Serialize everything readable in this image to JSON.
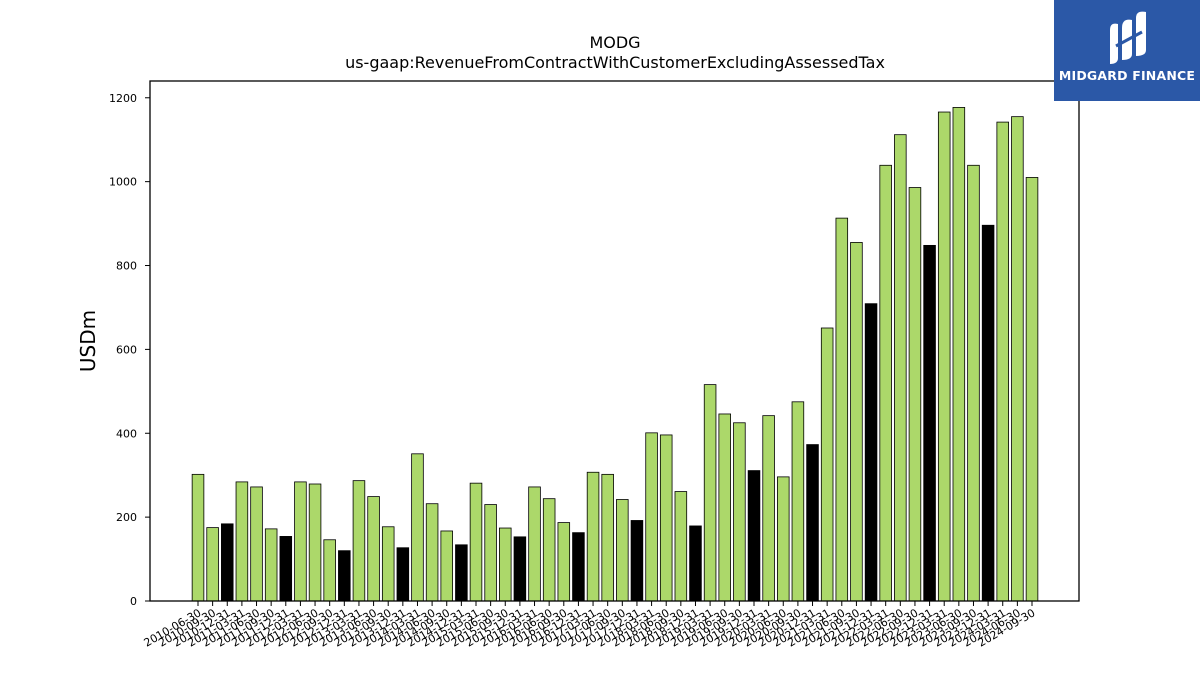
{
  "logo": {
    "text": "MIDGARD FINANCE",
    "color": "#2b58a7"
  },
  "chart_data": {
    "type": "bar",
    "title": "MODG",
    "subtitle": "us-gaap:RevenueFromContractWithCustomerExcludingAssessedTax",
    "xlabel": "",
    "ylabel": "USDm",
    "ylim": [
      0,
      1240
    ],
    "yticks": [
      0,
      200,
      400,
      600,
      800,
      1000,
      1200
    ],
    "grid": false,
    "colors": {
      "quarter": "#acd86a",
      "year_end": "#000000"
    },
    "categories": [
      "2010-06-30",
      "2010-09-30",
      "2010-12-31",
      "2011-03-31",
      "2011-06-30",
      "2011-09-30",
      "2011-12-31",
      "2012-03-31",
      "2012-06-30",
      "2012-09-30",
      "2012-12-31",
      "2013-03-31",
      "2013-06-30",
      "2013-09-30",
      "2013-12-31",
      "2014-03-31",
      "2014-06-30",
      "2014-09-30",
      "2014-12-31",
      "2015-03-31",
      "2015-06-30",
      "2015-09-30",
      "2015-12-31",
      "2016-03-31",
      "2016-06-30",
      "2016-09-30",
      "2016-12-31",
      "2017-03-31",
      "2017-06-30",
      "2017-09-30",
      "2017-12-31",
      "2018-03-31",
      "2018-06-30",
      "2018-09-30",
      "2018-12-31",
      "2019-03-31",
      "2019-06-30",
      "2019-09-30",
      "2019-12-31",
      "2020-03-31",
      "2020-06-30",
      "2020-09-30",
      "2020-12-31",
      "2021-03-31",
      "2021-06-30",
      "2021-09-30",
      "2021-12-31",
      "2022-03-31",
      "2022-06-30",
      "2022-09-30",
      "2022-12-31",
      "2023-03-31",
      "2023-06-30",
      "2023-09-30",
      "2023-12-31",
      "2024-03-31",
      "2024-06-30",
      "2024-09-30"
    ],
    "values": [
      302,
      175,
      184,
      284,
      272,
      172,
      154,
      284,
      279,
      146,
      120,
      287,
      249,
      177,
      127,
      351,
      232,
      167,
      134,
      281,
      230,
      174,
      153,
      272,
      244,
      187,
      163,
      307,
      302,
      242,
      192,
      401,
      396,
      261,
      179,
      516,
      446,
      425,
      311,
      442,
      296,
      475,
      373,
      651,
      913,
      855,
      709,
      1039,
      1112,
      986,
      848,
      1166,
      1177,
      1039,
      896,
      1142,
      1155,
      1010
    ],
    "year_end_flags": [
      0,
      0,
      1,
      0,
      0,
      0,
      1,
      0,
      0,
      0,
      1,
      0,
      0,
      0,
      1,
      0,
      0,
      0,
      1,
      0,
      0,
      0,
      1,
      0,
      0,
      0,
      1,
      0,
      0,
      0,
      1,
      0,
      0,
      0,
      1,
      0,
      0,
      0,
      1,
      0,
      0,
      0,
      1,
      0,
      0,
      0,
      1,
      0,
      0,
      0,
      1,
      0,
      0,
      0,
      1,
      0,
      0,
      0
    ]
  }
}
